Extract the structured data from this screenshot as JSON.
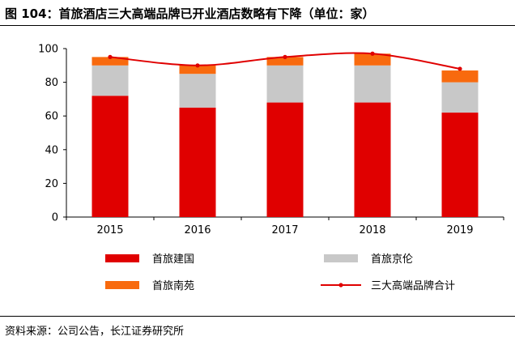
{
  "figure": {
    "title": "图 104：首旅酒店三大高端品牌已开业酒店数略有下降（单位：家）",
    "source": "资料来源：公司公告，长江证券研究所"
  },
  "chart_data": {
    "type": "bar",
    "stacked": true,
    "categories": [
      "2015",
      "2016",
      "2017",
      "2018",
      "2019"
    ],
    "series": [
      {
        "name": "首旅建国",
        "kind": "bar",
        "color": "#e00000",
        "values": [
          72,
          65,
          68,
          68,
          62
        ]
      },
      {
        "name": "首旅京伦",
        "kind": "bar",
        "color": "#c8c8c8",
        "values": [
          18,
          20,
          22,
          22,
          18
        ]
      },
      {
        "name": "首旅南苑",
        "kind": "bar",
        "color": "#f86a0e",
        "values": [
          5,
          5,
          5,
          7,
          7
        ]
      },
      {
        "name": "三大高端品牌合计",
        "kind": "line",
        "color": "#e00000",
        "values": [
          95,
          90,
          95,
          97,
          88
        ]
      }
    ],
    "ylim": [
      0,
      100
    ],
    "yticks": [
      0,
      20,
      40,
      60,
      80,
      100
    ],
    "grid": false,
    "legend_position": "bottom",
    "line_style": "smooth"
  }
}
